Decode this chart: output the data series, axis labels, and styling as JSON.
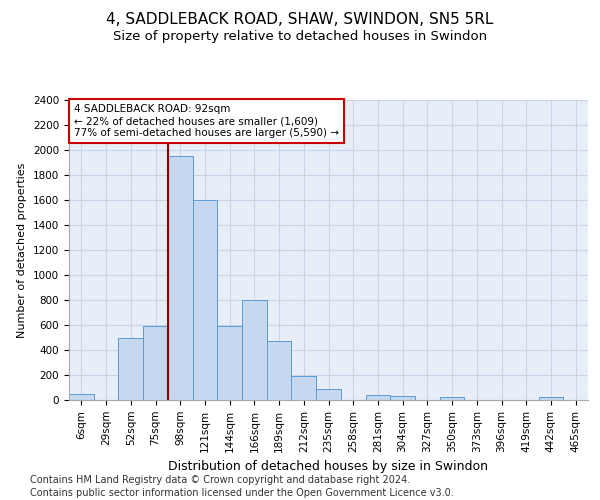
{
  "title_line1": "4, SADDLEBACK ROAD, SHAW, SWINDON, SN5 5RL",
  "title_line2": "Size of property relative to detached houses in Swindon",
  "xlabel": "Distribution of detached houses by size in Swindon",
  "ylabel": "Number of detached properties",
  "categories": [
    "6sqm",
    "29sqm",
    "52sqm",
    "75sqm",
    "98sqm",
    "121sqm",
    "144sqm",
    "166sqm",
    "189sqm",
    "212sqm",
    "235sqm",
    "258sqm",
    "281sqm",
    "304sqm",
    "327sqm",
    "350sqm",
    "373sqm",
    "396sqm",
    "419sqm",
    "442sqm",
    "465sqm"
  ],
  "values": [
    50,
    0,
    500,
    590,
    1950,
    1600,
    590,
    800,
    470,
    190,
    85,
    0,
    40,
    32,
    0,
    25,
    0,
    0,
    0,
    22,
    0
  ],
  "bar_color": "#c5d8ef",
  "bar_edge_color": "#5b9bd5",
  "vline_x_idx": 4,
  "vline_color": "#8b0000",
  "annotation_text": "4 SADDLEBACK ROAD: 92sqm\n← 22% of detached houses are smaller (1,609)\n77% of semi-detached houses are larger (5,590) →",
  "annotation_box_color": "#ffffff",
  "annotation_box_edge_color": "#cc0000",
  "ylim": [
    0,
    2400
  ],
  "yticks": [
    0,
    200,
    400,
    600,
    800,
    1000,
    1200,
    1400,
    1600,
    1800,
    2000,
    2200,
    2400
  ],
  "grid_color": "#c8d4e8",
  "background_color": "#e8eef8",
  "footer_line1": "Contains HM Land Registry data © Crown copyright and database right 2024.",
  "footer_line2": "Contains public sector information licensed under the Open Government Licence v3.0.",
  "title_fontsize": 11,
  "subtitle_fontsize": 9.5,
  "ylabel_fontsize": 8,
  "xlabel_fontsize": 9,
  "tick_fontsize": 7.5,
  "footer_fontsize": 7
}
